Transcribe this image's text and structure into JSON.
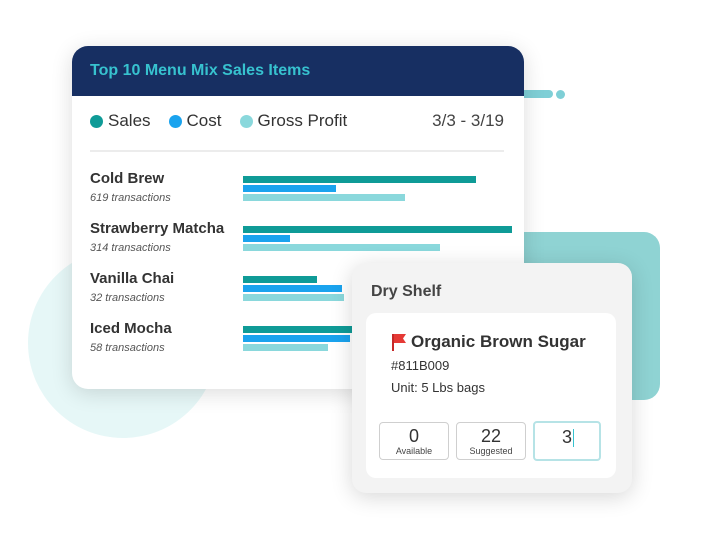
{
  "colors": {
    "header_bg": "#172f62",
    "title": "#37c2cf",
    "sales": "#0f9b97",
    "cost": "#1aa3ee",
    "gross_profit": "#8ad8dc",
    "flag": "#e53935"
  },
  "sales_card": {
    "title": "Top 10 Menu Mix Sales Items",
    "date_range": "3/3 - 3/19",
    "legend": [
      {
        "label": "Sales",
        "color": "#0f9b97"
      },
      {
        "label": "Cost",
        "color": "#1aa3ee"
      },
      {
        "label": "Gross Profit",
        "color": "#8ad8dc"
      }
    ]
  },
  "chart_data": {
    "type": "bar",
    "orientation": "horizontal",
    "title": "Top 10 Menu Mix Sales Items",
    "categories": [
      "Cold Brew",
      "Strawberry Matcha",
      "Vanilla Chai",
      "Iced Mocha"
    ],
    "subtitles": [
      "619 transactions",
      "314 transactions",
      "32 transactions",
      "58 transactions"
    ],
    "series": [
      {
        "name": "Sales",
        "values": [
          85,
          98,
          27,
          42
        ]
      },
      {
        "name": "Cost",
        "values": [
          34,
          17,
          36,
          39
        ]
      },
      {
        "name": "Gross Profit",
        "values": [
          59,
          72,
          37,
          31
        ]
      }
    ],
    "xlim": [
      0,
      100
    ],
    "grid": false,
    "legend": "top-left"
  },
  "dry_shelf": {
    "title": "Dry Shelf",
    "product_name": "Organic Brown Sugar",
    "product_code": "#811B009",
    "unit": "Unit: 5 Lbs bags",
    "available": {
      "value": "0",
      "label": "Available"
    },
    "suggested": {
      "value": "22",
      "label": "Suggested"
    },
    "order_qty": "3"
  }
}
